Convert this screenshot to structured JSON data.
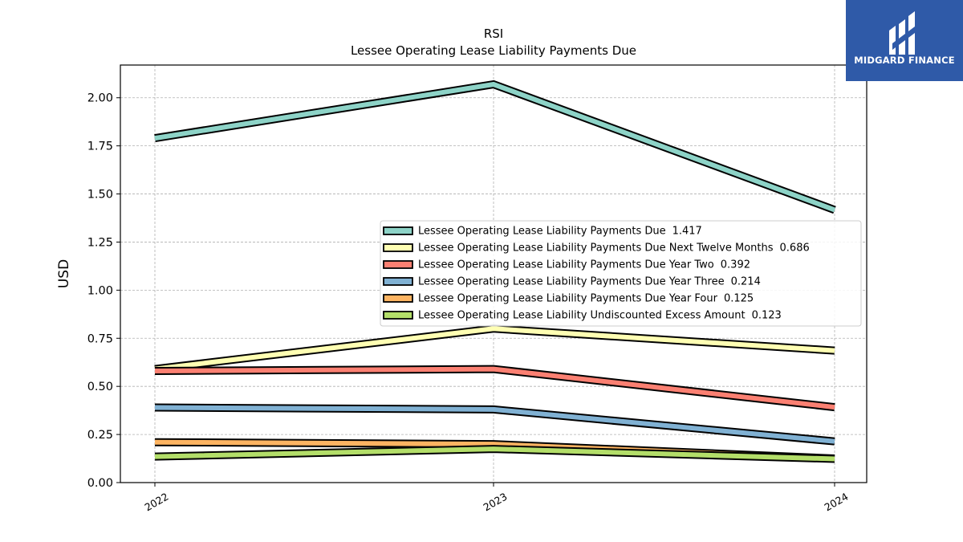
{
  "chart_data": {
    "type": "line",
    "title": "RSI",
    "subtitle": "Lessee Operating Lease Liability Payments Due",
    "xlabel": "",
    "ylabel": "USD",
    "categories": [
      "2022",
      "2023",
      "2024"
    ],
    "ylim": [
      0,
      2.17
    ],
    "yticks": [
      "0.00",
      "0.25",
      "0.50",
      "0.75",
      "1.00",
      "1.25",
      "1.50",
      "1.75",
      "2.00"
    ],
    "grid": true,
    "legend_position": "center-right",
    "series": [
      {
        "name": "Lessee Operating Lease Liability Payments Due",
        "legend_value": "1.417",
        "values": [
          1.79,
          2.07,
          1.417
        ],
        "color": "#8dd3c7"
      },
      {
        "name": "Lessee Operating Lease Liability Payments Due Next Twelve Months",
        "legend_value": "0.686",
        "values": [
          0.59,
          0.8,
          0.686
        ],
        "color": "#ffffb3"
      },
      {
        "name": "Lessee Operating Lease Liability Payments Due Year Two",
        "legend_value": "0.392",
        "values": [
          0.58,
          0.59,
          0.392
        ],
        "color": "#fb8072"
      },
      {
        "name": "Lessee Operating Lease Liability Payments Due Year Three",
        "legend_value": "0.214",
        "values": [
          0.39,
          0.38,
          0.214
        ],
        "color": "#80b1d3"
      },
      {
        "name": "Lessee Operating Lease Liability Payments Due Year Four",
        "legend_value": "0.125",
        "values": [
          0.21,
          0.2,
          0.125
        ],
        "color": "#fdb462"
      },
      {
        "name": "Lessee Operating Lease Liability Undiscounted Excess Amount",
        "legend_value": "0.123",
        "values": [
          0.135,
          0.175,
          0.123
        ],
        "color": "#b3de69"
      }
    ]
  },
  "logo": {
    "text": "MIDGARD FINANCE",
    "color": "#2f5aa8"
  }
}
